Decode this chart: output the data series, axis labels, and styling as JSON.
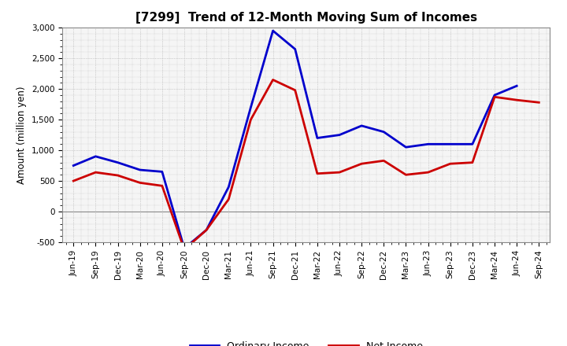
{
  "title": "[7299]  Trend of 12-Month Moving Sum of Incomes",
  "ylabel": "Amount (million yen)",
  "background_color": "#ffffff",
  "plot_bg_color": "#f5f5f5",
  "grid_color": "#aaaaaa",
  "ylim": [
    -500,
    3000
  ],
  "yticks": [
    -500,
    0,
    500,
    1000,
    1500,
    2000,
    2500,
    3000
  ],
  "x_labels": [
    "Jun-19",
    "Sep-19",
    "Dec-19",
    "Mar-20",
    "Jun-20",
    "Sep-20",
    "Dec-20",
    "Mar-21",
    "Jun-21",
    "Sep-21",
    "Dec-21",
    "Mar-22",
    "Jun-22",
    "Sep-22",
    "Dec-22",
    "Mar-23",
    "Jun-23",
    "Sep-23",
    "Dec-23",
    "Mar-24",
    "Jun-24",
    "Sep-24"
  ],
  "ordinary_income": [
    750,
    900,
    800,
    680,
    650,
    -600,
    -300,
    400,
    1700,
    2950,
    2650,
    1200,
    1250,
    1400,
    1300,
    1050,
    1100,
    1100,
    1100,
    1900,
    2050,
    null
  ],
  "net_income": [
    500,
    640,
    590,
    470,
    420,
    -620,
    -300,
    200,
    1500,
    2150,
    1980,
    620,
    640,
    780,
    830,
    600,
    640,
    780,
    800,
    1870,
    1820,
    1780
  ],
  "ordinary_color": "#0000cc",
  "net_color": "#cc0000",
  "line_width": 2.0,
  "title_fontsize": 11,
  "tick_fontsize": 7.5,
  "ylabel_fontsize": 8.5,
  "legend_fontsize": 9
}
